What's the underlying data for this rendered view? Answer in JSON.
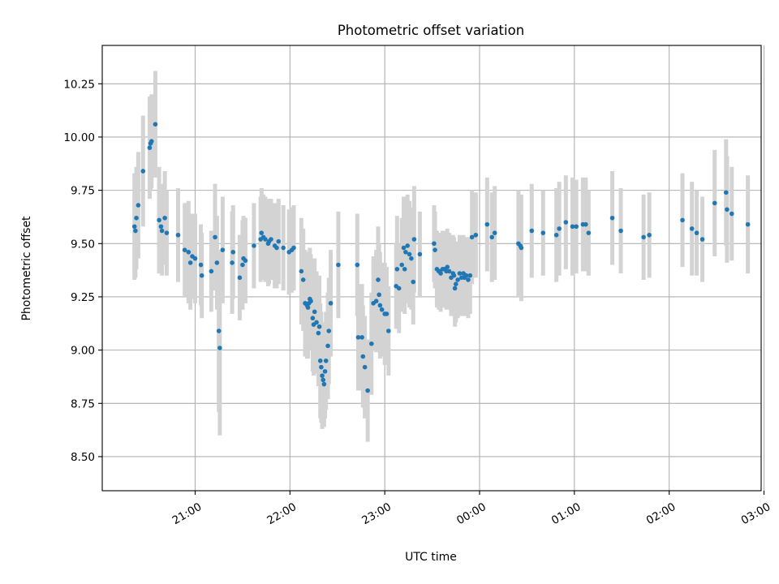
{
  "chart_data": {
    "type": "scatter",
    "title": "Photometric offset variation",
    "xlabel": "UTC time",
    "ylabel": "Photometric offset",
    "x_unit": "hours since 20:00 UTC (values past 24 are after midnight)",
    "xlim": [
      20.02,
      26.97
    ],
    "ylim": [
      8.34,
      10.43
    ],
    "xticks": [
      {
        "value": 21,
        "label": "21:00"
      },
      {
        "value": 22,
        "label": "22:00"
      },
      {
        "value": 23,
        "label": "23:00"
      },
      {
        "value": 24,
        "label": "00:00"
      },
      {
        "value": 25,
        "label": "01:00"
      },
      {
        "value": 26,
        "label": "02:00"
      },
      {
        "value": 27,
        "label": "03:00"
      }
    ],
    "yticks": [
      {
        "value": 8.5,
        "label": "8.50"
      },
      {
        "value": 8.75,
        "label": "8.75"
      },
      {
        "value": 9.0,
        "label": "9.00"
      },
      {
        "value": 9.25,
        "label": "9.25"
      },
      {
        "value": 9.5,
        "label": "9.50"
      },
      {
        "value": 9.75,
        "label": "9.75"
      },
      {
        "value": 10.0,
        "label": "10.00"
      },
      {
        "value": 10.25,
        "label": "10.25"
      }
    ],
    "grid": true,
    "marker_color": "#1f77b4",
    "errorbar_color": "#d3d3d3",
    "series": [
      {
        "points": [
          [
            20.36,
            9.58,
            0.25
          ],
          [
            20.37,
            9.56,
            0.22
          ],
          [
            20.38,
            9.62,
            0.24
          ],
          [
            20.4,
            9.68,
            0.25
          ],
          [
            20.45,
            9.84,
            0.26
          ],
          [
            20.52,
            9.95,
            0.24
          ],
          [
            20.53,
            9.97,
            0.22
          ],
          [
            20.54,
            9.98,
            0.22
          ],
          [
            20.58,
            10.06,
            0.25
          ],
          [
            20.62,
            9.61,
            0.25
          ],
          [
            20.64,
            9.58,
            0.2
          ],
          [
            20.65,
            9.56,
            0.21
          ],
          [
            20.68,
            9.62,
            0.22
          ],
          [
            20.7,
            9.55,
            0.2
          ],
          [
            20.82,
            9.54,
            0.22
          ],
          [
            20.89,
            9.47,
            0.22
          ],
          [
            20.93,
            9.46,
            0.24
          ],
          [
            20.95,
            9.41,
            0.22
          ],
          [
            20.97,
            9.44,
            0.2
          ],
          [
            21.0,
            9.43,
            0.21
          ],
          [
            21.06,
            9.4,
            0.19
          ],
          [
            21.07,
            9.35,
            0.2
          ],
          [
            21.17,
            9.37,
            0.19
          ],
          [
            21.21,
            9.53,
            0.25
          ],
          [
            21.23,
            9.41,
            0.22
          ],
          [
            21.25,
            9.09,
            0.38
          ],
          [
            21.26,
            9.01,
            0.41
          ],
          [
            21.29,
            9.47,
            0.25
          ],
          [
            21.39,
            9.41,
            0.24
          ],
          [
            21.4,
            9.46,
            0.22
          ],
          [
            21.47,
            9.34,
            0.2
          ],
          [
            21.5,
            9.4,
            0.21
          ],
          [
            21.51,
            9.43,
            0.2
          ],
          [
            21.53,
            9.42,
            0.2
          ],
          [
            21.62,
            9.49,
            0.2
          ],
          [
            21.69,
            9.52,
            0.2
          ],
          [
            21.7,
            9.55,
            0.21
          ],
          [
            21.72,
            9.53,
            0.2
          ],
          [
            21.74,
            9.52,
            0.2
          ],
          [
            21.77,
            9.5,
            0.2
          ],
          [
            21.78,
            9.51,
            0.2
          ],
          [
            21.8,
            9.52,
            0.19
          ],
          [
            21.84,
            9.49,
            0.2
          ],
          [
            21.86,
            9.48,
            0.19
          ],
          [
            21.88,
            9.51,
            0.2
          ],
          [
            21.93,
            9.48,
            0.2
          ],
          [
            21.99,
            9.46,
            0.2
          ],
          [
            22.02,
            9.47,
            0.2
          ],
          [
            22.04,
            9.48,
            0.2
          ],
          [
            22.12,
            9.37,
            0.25
          ],
          [
            22.14,
            9.33,
            0.24
          ],
          [
            22.16,
            9.22,
            0.25
          ],
          [
            22.18,
            9.21,
            0.25
          ],
          [
            22.19,
            9.2,
            0.24
          ],
          [
            22.2,
            9.22,
            0.22
          ],
          [
            22.21,
            9.24,
            0.24
          ],
          [
            22.22,
            9.23,
            0.22
          ],
          [
            22.24,
            9.15,
            0.25
          ],
          [
            22.25,
            9.12,
            0.24
          ],
          [
            22.26,
            9.18,
            0.25
          ],
          [
            22.28,
            9.13,
            0.24
          ],
          [
            22.3,
            9.08,
            0.25
          ],
          [
            22.31,
            9.11,
            0.24
          ],
          [
            22.32,
            8.95,
            0.27
          ],
          [
            22.33,
            8.92,
            0.26
          ],
          [
            22.34,
            8.88,
            0.25
          ],
          [
            22.35,
            8.86,
            0.22
          ],
          [
            22.36,
            8.84,
            0.2
          ],
          [
            22.37,
            8.9,
            0.22
          ],
          [
            22.38,
            8.95,
            0.23
          ],
          [
            22.4,
            9.02,
            0.25
          ],
          [
            22.41,
            9.09,
            0.25
          ],
          [
            22.43,
            9.22,
            0.25
          ],
          [
            22.51,
            9.4,
            0.25
          ],
          [
            22.71,
            9.4,
            0.24
          ],
          [
            22.72,
            9.06,
            0.25
          ],
          [
            22.76,
            9.06,
            0.25
          ],
          [
            22.77,
            8.97,
            0.24
          ],
          [
            22.79,
            8.92,
            0.24
          ],
          [
            22.82,
            8.81,
            0.24
          ],
          [
            22.86,
            9.03,
            0.24
          ],
          [
            22.88,
            9.22,
            0.22
          ],
          [
            22.91,
            9.23,
            0.24
          ],
          [
            22.93,
            9.33,
            0.25
          ],
          [
            22.94,
            9.26,
            0.24
          ],
          [
            22.95,
            9.21,
            0.25
          ],
          [
            22.97,
            9.19,
            0.22
          ],
          [
            23.0,
            9.17,
            0.24
          ],
          [
            23.02,
            9.17,
            0.22
          ],
          [
            23.04,
            9.09,
            0.21
          ],
          [
            23.12,
            9.3,
            0.2
          ],
          [
            23.13,
            9.38,
            0.25
          ],
          [
            23.15,
            9.29,
            0.21
          ],
          [
            23.18,
            9.4,
            0.22
          ],
          [
            23.2,
            9.48,
            0.24
          ],
          [
            23.21,
            9.38,
            0.21
          ],
          [
            23.22,
            9.46,
            0.24
          ],
          [
            23.24,
            9.49,
            0.24
          ],
          [
            23.26,
            9.45,
            0.25
          ],
          [
            23.28,
            9.43,
            0.24
          ],
          [
            23.3,
            9.32,
            0.2
          ],
          [
            23.31,
            9.52,
            0.25
          ],
          [
            23.37,
            9.45,
            0.2
          ],
          [
            23.52,
            9.5,
            0.18
          ],
          [
            23.53,
            9.47,
            0.18
          ],
          [
            23.55,
            9.38,
            0.18
          ],
          [
            23.57,
            9.37,
            0.18
          ],
          [
            23.58,
            9.37,
            0.18
          ],
          [
            23.59,
            9.36,
            0.18
          ],
          [
            23.61,
            9.38,
            0.18
          ],
          [
            23.63,
            9.38,
            0.18
          ],
          [
            23.65,
            9.37,
            0.18
          ],
          [
            23.66,
            9.39,
            0.18
          ],
          [
            23.68,
            9.37,
            0.18
          ],
          [
            23.7,
            9.34,
            0.18
          ],
          [
            23.72,
            9.36,
            0.18
          ],
          [
            23.73,
            9.35,
            0.18
          ],
          [
            23.74,
            9.29,
            0.18
          ],
          [
            23.75,
            9.31,
            0.18
          ],
          [
            23.77,
            9.33,
            0.18
          ],
          [
            23.79,
            9.36,
            0.18
          ],
          [
            23.81,
            9.34,
            0.18
          ],
          [
            23.83,
            9.36,
            0.18
          ],
          [
            23.84,
            9.34,
            0.18
          ],
          [
            23.86,
            9.35,
            0.18
          ],
          [
            23.88,
            9.33,
            0.18
          ],
          [
            23.9,
            9.35,
            0.18
          ],
          [
            23.92,
            9.53,
            0.22
          ],
          [
            23.96,
            9.54,
            0.2
          ],
          [
            24.08,
            9.59,
            0.22
          ],
          [
            24.13,
            9.53,
            0.21
          ],
          [
            24.16,
            9.55,
            0.22
          ],
          [
            24.41,
            9.5,
            0.25
          ],
          [
            24.43,
            9.49,
            0.22
          ],
          [
            24.44,
            9.48,
            0.25
          ],
          [
            24.55,
            9.56,
            0.22
          ],
          [
            24.67,
            9.55,
            0.2
          ],
          [
            24.81,
            9.54,
            0.22
          ],
          [
            24.84,
            9.57,
            0.22
          ],
          [
            24.91,
            9.6,
            0.22
          ],
          [
            24.98,
            9.58,
            0.23
          ],
          [
            25.02,
            9.58,
            0.22
          ],
          [
            25.09,
            9.59,
            0.22
          ],
          [
            25.12,
            9.59,
            0.22
          ],
          [
            25.15,
            9.55,
            0.2
          ],
          [
            25.4,
            9.62,
            0.22
          ],
          [
            25.49,
            9.56,
            0.2
          ],
          [
            25.73,
            9.53,
            0.2
          ],
          [
            25.79,
            9.54,
            0.2
          ],
          [
            26.14,
            9.61,
            0.22
          ],
          [
            26.24,
            9.57,
            0.22
          ],
          [
            26.29,
            9.55,
            0.2
          ],
          [
            26.35,
            9.52,
            0.2
          ],
          [
            26.48,
            9.69,
            0.25
          ],
          [
            26.6,
            9.74,
            0.25
          ],
          [
            26.61,
            9.66,
            0.25
          ],
          [
            26.66,
            9.64,
            0.22
          ],
          [
            26.83,
            9.59,
            0.23
          ]
        ]
      }
    ]
  }
}
